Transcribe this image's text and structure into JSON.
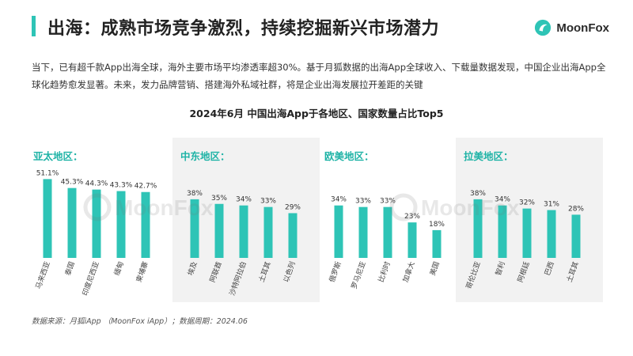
{
  "header": {
    "title": "出海：成熟市场竞争激烈，持续挖掘新兴市场潜力",
    "brand": "MoonFox",
    "accent_color": "#2ec4b6"
  },
  "intro": {
    "text": "当下，已有超千款App出海全球，海外主要市场平均渗透率超30%。基于月狐数据的出海App全球收入、下载量数据发现，中国企业出海App全球化趋势愈发显著。未来，发力品牌营销、搭建海外私域社群，将是企业出海发展拉开差距的关键"
  },
  "chart_title": "2024年6月 中国出海App于各地区、国家数量占比Top5",
  "watermark_text": "MoonFox",
  "bar_color": "#2ec4b6",
  "chart_data": [
    {
      "type": "bar",
      "title": "亚太地区：",
      "categories": [
        "马来西亚",
        "泰国",
        "印度尼西亚",
        "缅甸",
        "柬埔寨"
      ],
      "values": [
        51.1,
        45.3,
        44.3,
        43.3,
        42.7
      ],
      "labels": [
        "51.1%",
        "45.3%",
        "44.3%",
        "43.3%",
        "42.7%"
      ],
      "unit": "%",
      "shaded": false
    },
    {
      "type": "bar",
      "title": "中东地区：",
      "categories": [
        "埃及",
        "阿联酋",
        "沙特阿拉伯",
        "土耳其",
        "以色列"
      ],
      "values": [
        38,
        35,
        34,
        33,
        29
      ],
      "labels": [
        "38%",
        "35%",
        "34%",
        "33%",
        "29%"
      ],
      "unit": "%",
      "shaded": true
    },
    {
      "type": "bar",
      "title": "欧美地区：",
      "categories": [
        "俄罗斯",
        "罗马尼亚",
        "比利时",
        "加拿大",
        "美国"
      ],
      "values": [
        34,
        33,
        33,
        23,
        18
      ],
      "labels": [
        "34%",
        "33%",
        "33%",
        "23%",
        "18%"
      ],
      "unit": "%",
      "shaded": false
    },
    {
      "type": "bar",
      "title": "拉美地区：",
      "categories": [
        "哥伦比亚",
        "智利",
        "阿根廷",
        "巴西",
        "土耳其"
      ],
      "values": [
        38,
        34,
        32,
        31,
        28
      ],
      "labels": [
        "38%",
        "34%",
        "32%",
        "31%",
        "28%"
      ],
      "unit": "%",
      "shaded": true
    }
  ],
  "source": "数据来源：月狐iApp （MoonFox iApp）；数据周期：2024.06"
}
